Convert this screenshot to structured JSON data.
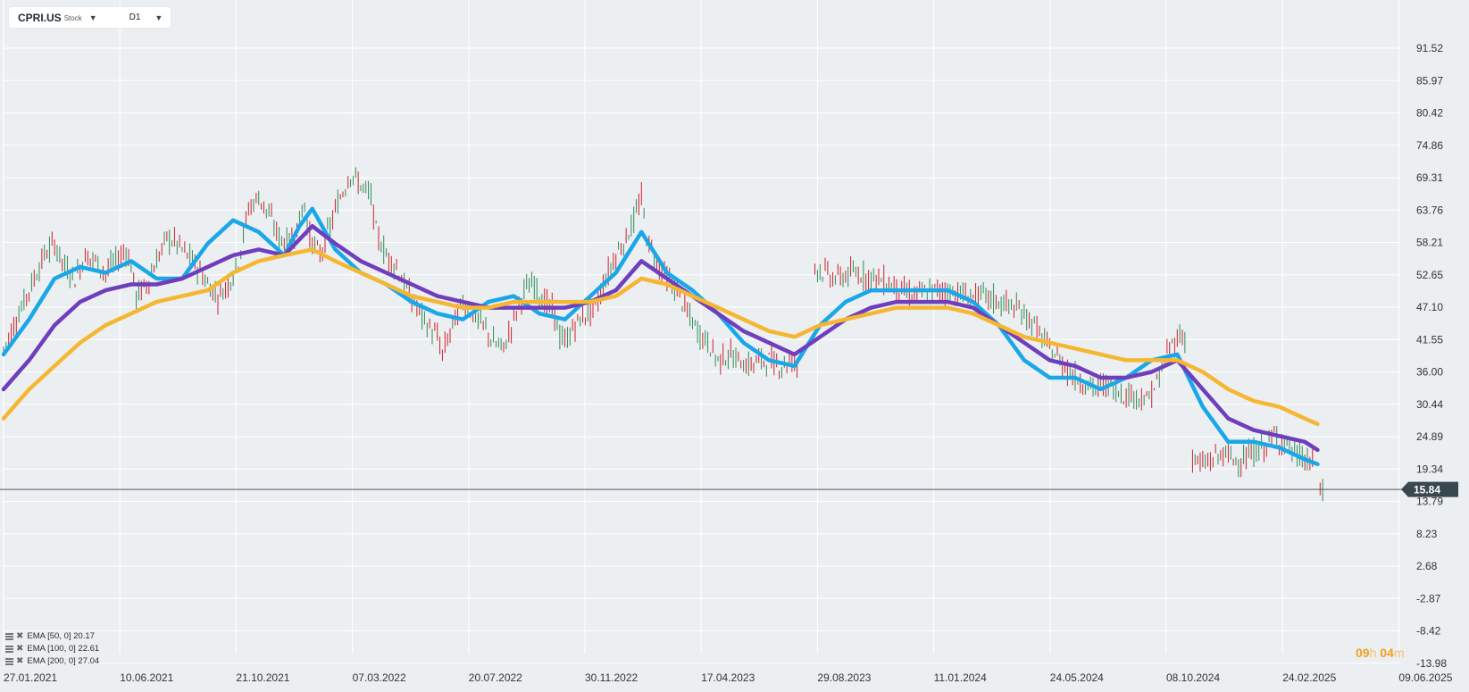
{
  "header": {
    "symbol": "CPRI.US",
    "symbol_type": "Stock",
    "timeframe": "D1"
  },
  "countdown": {
    "hours": "09",
    "hours_unit": "h",
    "minutes": "04",
    "minutes_unit": "m"
  },
  "indicators": [
    {
      "label": "EMA  [50,  0]  20.17",
      "color": "#1aa7e8"
    },
    {
      "label": "EMA  [100,  0]  22.61",
      "color": "#6f3ebd"
    },
    {
      "label": "EMA  [200,  0]  27.04",
      "color": "#f5b732"
    }
  ],
  "chart_data": {
    "type": "line",
    "x_ticks": [
      "27.01.2021",
      "10.06.2021",
      "21.10.2021",
      "07.03.2022",
      "20.07.2022",
      "30.11.2022",
      "17.04.2023",
      "29.08.2023",
      "11.01.2024",
      "24.05.2024",
      "08.10.2024",
      "24.02.2025",
      "09.06.2025"
    ],
    "y_ticks": [
      "91.52",
      "85.97",
      "80.42",
      "74.86",
      "69.31",
      "63.76",
      "58.21",
      "52.65",
      "47.10",
      "41.55",
      "36.00",
      "30.44",
      "24.89",
      "19.34",
      "13.79",
      "8.23",
      "2.68",
      "-2.87",
      "-8.42",
      "-13.98"
    ],
    "ylim": [
      -13.98,
      97.07
    ],
    "current_price": {
      "label": "15.84",
      "value": 15.84,
      "color": "#39474f"
    },
    "candle_up_color": "#2e8b57",
    "candle_down_color": "#d01f2a",
    "price_segments": [
      {
        "points": [
          [
            0,
            40
          ],
          [
            6,
            46
          ],
          [
            12,
            52
          ],
          [
            16,
            56
          ],
          [
            20,
            58
          ],
          [
            24,
            54
          ],
          [
            28,
            52
          ],
          [
            32,
            56
          ],
          [
            36,
            55
          ],
          [
            40,
            53
          ],
          [
            44,
            55
          ],
          [
            48,
            57
          ],
          [
            50,
            54
          ],
          [
            52,
            49
          ],
          [
            56,
            51
          ],
          [
            60,
            55
          ],
          [
            64,
            59
          ],
          [
            68,
            58
          ],
          [
            72,
            56
          ],
          [
            76,
            54
          ],
          [
            80,
            51
          ],
          [
            84,
            49
          ],
          [
            88,
            51
          ],
          [
            92,
            55
          ],
          [
            96,
            64
          ],
          [
            100,
            66
          ],
          [
            104,
            63
          ],
          [
            108,
            59
          ],
          [
            112,
            58
          ],
          [
            116,
            62
          ],
          [
            118,
            65
          ],
          [
            120,
            59
          ],
          [
            124,
            56
          ],
          [
            128,
            61
          ],
          [
            132,
            66
          ],
          [
            136,
            70
          ],
          [
            140,
            68
          ],
          [
            144,
            66
          ],
          [
            146,
            60
          ],
          [
            150,
            56
          ],
          [
            154,
            54
          ],
          [
            158,
            50
          ],
          [
            162,
            47
          ],
          [
            166,
            44
          ],
          [
            170,
            42
          ],
          [
            172,
            39
          ],
          [
            176,
            44
          ],
          [
            180,
            48
          ],
          [
            184,
            46
          ],
          [
            188,
            44
          ],
          [
            192,
            41
          ],
          [
            196,
            40
          ],
          [
            200,
            45
          ],
          [
            204,
            50
          ],
          [
            208,
            51
          ],
          [
            212,
            48
          ],
          [
            216,
            46
          ],
          [
            218,
            42
          ],
          [
            220,
            41
          ],
          [
            224,
            44
          ],
          [
            228,
            46
          ],
          [
            232,
            47
          ],
          [
            236,
            52
          ],
          [
            240,
            56
          ],
          [
            244,
            59
          ],
          [
            248,
            63
          ],
          [
            250,
            66
          ],
          [
            252,
            59
          ],
          [
            256,
            55
          ],
          [
            260,
            52
          ],
          [
            264,
            50
          ],
          [
            268,
            46
          ],
          [
            272,
            43
          ],
          [
            276,
            41
          ],
          [
            280,
            38
          ],
          [
            284,
            39
          ],
          [
            288,
            38
          ],
          [
            292,
            37
          ],
          [
            296,
            38
          ],
          [
            300,
            38
          ],
          [
            304,
            37
          ],
          [
            310,
            38
          ],
          [
            312,
            36
          ]
        ]
      },
      {
        "points": [
          [
            318,
            54
          ],
          [
            322,
            53
          ],
          [
            326,
            52
          ],
          [
            334,
            53
          ],
          [
            342,
            52
          ],
          [
            348,
            51
          ],
          [
            356,
            49
          ],
          [
            364,
            50
          ],
          [
            370,
            50
          ],
          [
            378,
            49
          ],
          [
            384,
            49
          ],
          [
            390,
            48
          ],
          [
            396,
            47
          ],
          [
            400,
            46
          ],
          [
            404,
            44
          ],
          [
            408,
            41
          ],
          [
            412,
            39
          ],
          [
            416,
            37
          ],
          [
            420,
            35
          ],
          [
            424,
            34
          ],
          [
            428,
            33
          ],
          [
            432,
            34
          ],
          [
            436,
            33
          ],
          [
            440,
            32
          ],
          [
            444,
            32
          ],
          [
            448,
            31
          ],
          [
            452,
            34
          ],
          [
            456,
            39
          ],
          [
            460,
            42
          ],
          [
            464,
            42
          ]
        ]
      },
      {
        "points": [
          [
            466,
            21
          ],
          [
            470,
            20
          ],
          [
            474,
            21
          ],
          [
            478,
            22
          ],
          [
            482,
            21
          ],
          [
            486,
            21
          ],
          [
            490,
            22
          ],
          [
            494,
            23
          ],
          [
            498,
            25
          ],
          [
            502,
            24
          ],
          [
            506,
            22
          ],
          [
            510,
            21
          ],
          [
            514,
            20
          ]
        ]
      },
      {
        "points": [
          [
            516,
            16
          ],
          [
            518,
            14
          ]
        ]
      }
    ],
    "series": [
      {
        "name": "EMA [50, 0]",
        "color": "#1aa7e8",
        "points": [
          [
            0,
            39
          ],
          [
            10,
            45
          ],
          [
            20,
            52
          ],
          [
            30,
            54
          ],
          [
            40,
            53
          ],
          [
            50,
            55
          ],
          [
            60,
            52
          ],
          [
            70,
            52
          ],
          [
            80,
            58
          ],
          [
            90,
            62
          ],
          [
            100,
            60
          ],
          [
            110,
            56
          ],
          [
            116,
            61
          ],
          [
            121,
            64
          ],
          [
            130,
            57
          ],
          [
            140,
            53
          ],
          [
            150,
            51
          ],
          [
            160,
            48
          ],
          [
            170,
            46
          ],
          [
            180,
            45
          ],
          [
            190,
            48
          ],
          [
            200,
            49
          ],
          [
            210,
            46
          ],
          [
            220,
            45
          ],
          [
            230,
            49
          ],
          [
            240,
            53
          ],
          [
            250,
            60
          ],
          [
            260,
            53
          ],
          [
            270,
            50
          ],
          [
            280,
            46
          ],
          [
            290,
            41
          ],
          [
            300,
            38
          ],
          [
            310,
            37
          ],
          [
            320,
            44
          ],
          [
            330,
            48
          ],
          [
            340,
            50
          ],
          [
            350,
            50
          ],
          [
            360,
            50
          ],
          [
            370,
            50
          ],
          [
            380,
            48
          ],
          [
            390,
            44
          ],
          [
            400,
            38
          ],
          [
            410,
            35
          ],
          [
            420,
            35
          ],
          [
            430,
            33
          ],
          [
            440,
            35
          ],
          [
            450,
            38
          ],
          [
            460,
            39
          ],
          [
            470,
            30
          ],
          [
            480,
            24
          ],
          [
            490,
            24
          ],
          [
            500,
            23
          ],
          [
            510,
            21
          ],
          [
            515,
            20.17
          ]
        ]
      },
      {
        "name": "EMA [100, 0]",
        "color": "#6f3ebd",
        "points": [
          [
            0,
            33
          ],
          [
            10,
            38
          ],
          [
            20,
            44
          ],
          [
            30,
            48
          ],
          [
            40,
            50
          ],
          [
            50,
            51
          ],
          [
            60,
            51
          ],
          [
            70,
            52
          ],
          [
            80,
            54
          ],
          [
            90,
            56
          ],
          [
            100,
            57
          ],
          [
            110,
            56
          ],
          [
            121,
            61
          ],
          [
            130,
            58
          ],
          [
            140,
            55
          ],
          [
            150,
            53
          ],
          [
            160,
            51
          ],
          [
            170,
            49
          ],
          [
            180,
            48
          ],
          [
            190,
            47
          ],
          [
            200,
            47
          ],
          [
            210,
            47
          ],
          [
            220,
            47
          ],
          [
            230,
            48
          ],
          [
            240,
            50
          ],
          [
            250,
            55
          ],
          [
            260,
            52
          ],
          [
            270,
            49
          ],
          [
            280,
            46
          ],
          [
            290,
            43
          ],
          [
            300,
            41
          ],
          [
            310,
            39
          ],
          [
            320,
            42
          ],
          [
            330,
            45
          ],
          [
            340,
            47
          ],
          [
            350,
            48
          ],
          [
            360,
            48
          ],
          [
            370,
            48
          ],
          [
            380,
            47
          ],
          [
            390,
            44
          ],
          [
            400,
            41
          ],
          [
            410,
            38
          ],
          [
            420,
            37
          ],
          [
            430,
            35
          ],
          [
            440,
            35
          ],
          [
            450,
            36
          ],
          [
            460,
            38
          ],
          [
            470,
            33
          ],
          [
            480,
            28
          ],
          [
            490,
            26
          ],
          [
            500,
            25
          ],
          [
            510,
            24
          ],
          [
            515,
            22.61
          ]
        ]
      },
      {
        "name": "EMA [200, 0]",
        "color": "#f5b732",
        "points": [
          [
            0,
            28
          ],
          [
            10,
            33
          ],
          [
            20,
            37
          ],
          [
            30,
            41
          ],
          [
            40,
            44
          ],
          [
            50,
            46
          ],
          [
            60,
            48
          ],
          [
            70,
            49
          ],
          [
            80,
            50
          ],
          [
            90,
            53
          ],
          [
            100,
            55
          ],
          [
            110,
            56
          ],
          [
            121,
            57
          ],
          [
            130,
            55
          ],
          [
            140,
            53
          ],
          [
            150,
            51
          ],
          [
            160,
            49
          ],
          [
            170,
            48
          ],
          [
            180,
            47
          ],
          [
            190,
            47
          ],
          [
            200,
            48
          ],
          [
            210,
            48
          ],
          [
            220,
            48
          ],
          [
            230,
            48
          ],
          [
            240,
            49
          ],
          [
            250,
            52
          ],
          [
            260,
            51
          ],
          [
            270,
            49
          ],
          [
            280,
            47
          ],
          [
            290,
            45
          ],
          [
            300,
            43
          ],
          [
            310,
            42
          ],
          [
            320,
            44
          ],
          [
            330,
            45
          ],
          [
            340,
            46
          ],
          [
            350,
            47
          ],
          [
            360,
            47
          ],
          [
            370,
            47
          ],
          [
            380,
            46
          ],
          [
            390,
            44
          ],
          [
            400,
            42
          ],
          [
            410,
            41
          ],
          [
            420,
            40
          ],
          [
            430,
            39
          ],
          [
            440,
            38
          ],
          [
            450,
            38
          ],
          [
            460,
            38
          ],
          [
            470,
            36
          ],
          [
            480,
            33
          ],
          [
            490,
            31
          ],
          [
            500,
            30
          ],
          [
            510,
            28
          ],
          [
            515,
            27.04
          ]
        ]
      }
    ]
  }
}
